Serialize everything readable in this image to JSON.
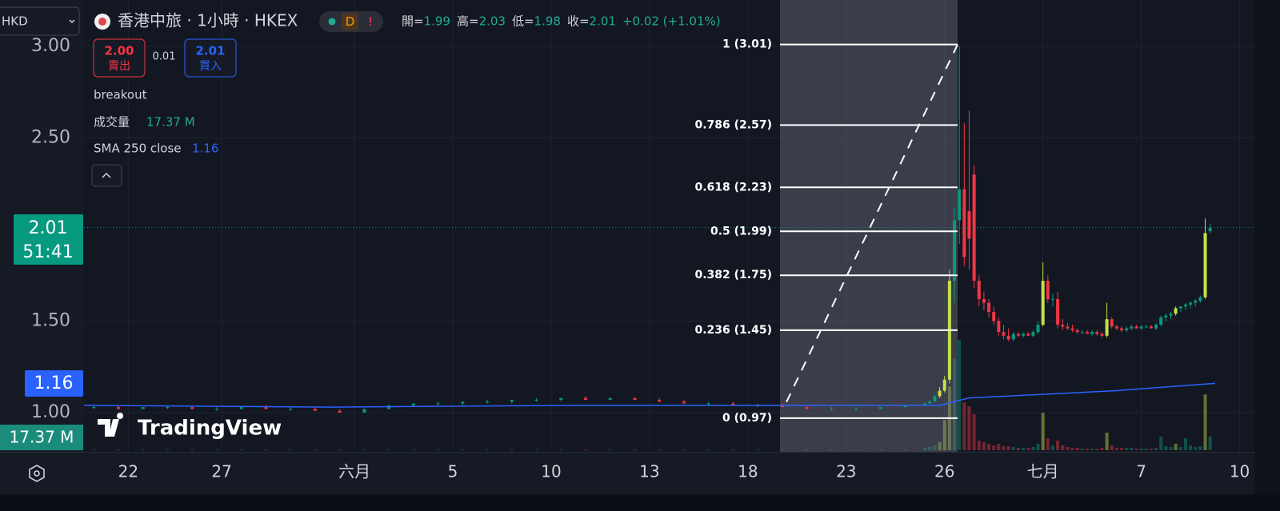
{
  "ui": {
    "currency": "HKD",
    "symbol": "香港中旅 · 1小時 · HKEX",
    "badge_d": "D",
    "badge_alert": "!",
    "ohlc_labels": [
      "開=",
      "高=",
      "低=",
      "收="
    ],
    "change": "+0.02 (+1.01%)",
    "sell_price": "2.00",
    "sell_label": "賣出",
    "spread": "0.01",
    "buy_price": "2.01",
    "buy_label": "買入",
    "indicator_breakout": "breakout",
    "volume_name": "成交量",
    "timer": "51:41",
    "logo": "TradingView"
  },
  "chart_data": {
    "type": "candlestick",
    "xlim": [
      0,
      238
    ],
    "ylim": [
      0.786,
      3.253
    ],
    "volume_lim": [
      0,
      560
    ],
    "yticks": [
      {
        "value": 1,
        "label": "1.00"
      },
      {
        "value": 1.5,
        "label": "1.50"
      },
      {
        "value": 2.5,
        "label": "2.50"
      },
      {
        "value": 3,
        "label": "3.00"
      }
    ],
    "xticks": [
      {
        "value": 9,
        "label": "22"
      },
      {
        "value": 28,
        "label": "27"
      },
      {
        "value": 55,
        "label": "六月"
      },
      {
        "value": 75,
        "label": "5"
      },
      {
        "value": 95,
        "label": "10"
      },
      {
        "value": 115,
        "label": "13"
      },
      {
        "value": 135,
        "label": "18"
      },
      {
        "value": 155,
        "label": "23"
      },
      {
        "value": 175,
        "label": "26"
      },
      {
        "value": 195,
        "label": "七月"
      },
      {
        "value": 215,
        "label": "7"
      },
      {
        "value": 235,
        "label": "10"
      }
    ],
    "grid": true,
    "volume_label": "17.37 M",
    "candles": [
      {
        "x": 2,
        "o": 1.03,
        "h": 1.04,
        "l": 1.02,
        "c": 1.03,
        "v": 1,
        "color": "#089981"
      },
      {
        "x": 7,
        "o": 1.03,
        "h": 1.04,
        "l": 1.02,
        "c": 1.02,
        "v": 1,
        "color": "#f23645"
      },
      {
        "x": 12,
        "o": 1.02,
        "h": 1.03,
        "l": 1.02,
        "c": 1.03,
        "v": 1,
        "color": "#089981"
      },
      {
        "x": 17,
        "o": 1.03,
        "h": 1.04,
        "l": 1.02,
        "c": 1.03,
        "v": 1,
        "color": "#089981"
      },
      {
        "x": 22,
        "o": 1.03,
        "h": 1.03,
        "l": 1.02,
        "c": 1.02,
        "v": 1,
        "color": "#f23645"
      },
      {
        "x": 27,
        "o": 1.02,
        "h": 1.03,
        "l": 1.01,
        "c": 1.02,
        "v": 1,
        "color": "#089981"
      },
      {
        "x": 32,
        "o": 1.02,
        "h": 1.03,
        "l": 1.02,
        "c": 1.03,
        "v": 1,
        "color": "#089981"
      },
      {
        "x": 37,
        "o": 1.03,
        "h": 1.04,
        "l": 1.02,
        "c": 1.02,
        "v": 1,
        "color": "#f23645"
      },
      {
        "x": 42,
        "o": 1.02,
        "h": 1.03,
        "l": 1.01,
        "c": 1.02,
        "v": 1,
        "color": "#089981"
      },
      {
        "x": 47,
        "o": 1.02,
        "h": 1.03,
        "l": 1.01,
        "c": 1.01,
        "v": 1,
        "color": "#f23645"
      },
      {
        "x": 52,
        "o": 1.01,
        "h": 1.02,
        "l": 1.0,
        "c": 1.0,
        "v": 1,
        "color": "#f23645"
      },
      {
        "x": 57,
        "o": 1.0,
        "h": 1.02,
        "l": 1.0,
        "c": 1.02,
        "v": 1,
        "color": "#089981"
      },
      {
        "x": 62,
        "o": 1.02,
        "h": 1.04,
        "l": 1.02,
        "c": 1.04,
        "v": 1,
        "color": "#089981"
      },
      {
        "x": 67,
        "o": 1.04,
        "h": 1.05,
        "l": 1.03,
        "c": 1.05,
        "v": 1,
        "color": "#089981"
      },
      {
        "x": 72,
        "o": 1.05,
        "h": 1.06,
        "l": 1.04,
        "c": 1.05,
        "v": 1,
        "color": "#089981"
      },
      {
        "x": 77,
        "o": 1.05,
        "h": 1.06,
        "l": 1.04,
        "c": 1.06,
        "v": 1,
        "color": "#089981"
      },
      {
        "x": 82,
        "o": 1.06,
        "h": 1.07,
        "l": 1.05,
        "c": 1.06,
        "v": 1,
        "color": "#089981"
      },
      {
        "x": 87,
        "o": 1.06,
        "h": 1.07,
        "l": 1.05,
        "c": 1.07,
        "v": 1,
        "color": "#089981"
      },
      {
        "x": 92,
        "o": 1.07,
        "h": 1.08,
        "l": 1.06,
        "c": 1.07,
        "v": 1,
        "color": "#089981"
      },
      {
        "x": 97,
        "o": 1.07,
        "h": 1.08,
        "l": 1.06,
        "c": 1.08,
        "v": 1,
        "color": "#089981"
      },
      {
        "x": 102,
        "o": 1.08,
        "h": 1.09,
        "l": 1.07,
        "c": 1.07,
        "v": 1,
        "color": "#f23645"
      },
      {
        "x": 107,
        "o": 1.07,
        "h": 1.08,
        "l": 1.07,
        "c": 1.08,
        "v": 1,
        "color": "#089981"
      },
      {
        "x": 112,
        "o": 1.08,
        "h": 1.08,
        "l": 1.07,
        "c": 1.07,
        "v": 1,
        "color": "#f23645"
      },
      {
        "x": 117,
        "o": 1.07,
        "h": 1.08,
        "l": 1.06,
        "c": 1.06,
        "v": 1,
        "color": "#f23645"
      },
      {
        "x": 122,
        "o": 1.06,
        "h": 1.07,
        "l": 1.05,
        "c": 1.05,
        "v": 1,
        "color": "#f23645"
      },
      {
        "x": 127,
        "o": 1.05,
        "h": 1.06,
        "l": 1.04,
        "c": 1.05,
        "v": 1,
        "color": "#089981"
      },
      {
        "x": 132,
        "o": 1.05,
        "h": 1.06,
        "l": 1.04,
        "c": 1.04,
        "v": 1,
        "color": "#f23645"
      },
      {
        "x": 137,
        "o": 1.04,
        "h": 1.05,
        "l": 1.03,
        "c": 1.04,
        "v": 1,
        "color": "#089981"
      },
      {
        "x": 142,
        "o": 1.04,
        "h": 1.05,
        "l": 1.03,
        "c": 1.03,
        "v": 1,
        "color": "#f23645"
      },
      {
        "x": 147,
        "o": 1.03,
        "h": 1.04,
        "l": 1.02,
        "c": 1.02,
        "v": 1,
        "color": "#f23645"
      },
      {
        "x": 152,
        "o": 1.02,
        "h": 1.03,
        "l": 1.01,
        "c": 1.02,
        "v": 1,
        "color": "#089981"
      },
      {
        "x": 157,
        "o": 1.02,
        "h": 1.03,
        "l": 1.01,
        "c": 1.02,
        "v": 1,
        "color": "#089981"
      },
      {
        "x": 162,
        "o": 1.02,
        "h": 1.03,
        "l": 1.02,
        "c": 1.03,
        "v": 1,
        "color": "#089981"
      },
      {
        "x": 167,
        "o": 1.03,
        "h": 1.04,
        "l": 1.03,
        "c": 1.04,
        "v": 1,
        "color": "#089981"
      },
      {
        "x": 171,
        "o": 1.04,
        "h": 1.06,
        "l": 1.04,
        "c": 1.05,
        "v": 3,
        "color": "#089981"
      },
      {
        "x": 172,
        "o": 1.05,
        "h": 1.07,
        "l": 1.05,
        "c": 1.06,
        "v": 4,
        "color": "#089981"
      },
      {
        "x": 173,
        "o": 1.06,
        "h": 1.1,
        "l": 1.06,
        "c": 1.09,
        "v": 6,
        "color": "#089981"
      },
      {
        "x": 174,
        "o": 1.09,
        "h": 1.14,
        "l": 1.08,
        "c": 1.12,
        "v": 10,
        "color": "#c5e04a"
      },
      {
        "x": 175,
        "o": 1.12,
        "h": 1.2,
        "l": 1.11,
        "c": 1.18,
        "v": 38,
        "color": "#c5e04a"
      },
      {
        "x": 176,
        "o": 1.18,
        "h": 1.78,
        "l": 1.16,
        "c": 1.72,
        "v": 80,
        "color": "#c5e04a"
      },
      {
        "x": 177,
        "o": 1.72,
        "h": 2.12,
        "l": 1.6,
        "c": 2.05,
        "v": 115,
        "color": "#089981"
      },
      {
        "x": 178,
        "o": 2.05,
        "h": 3.0,
        "l": 1.92,
        "c": 2.22,
        "v": 138,
        "color": "#089981"
      },
      {
        "x": 179,
        "o": 2.22,
        "h": 2.58,
        "l": 1.8,
        "c": 1.85,
        "v": 60,
        "color": "#f23645"
      },
      {
        "x": 180,
        "o": 2.1,
        "h": 2.65,
        "l": 1.78,
        "c": 1.95,
        "v": 55,
        "color": "#f23645"
      },
      {
        "x": 181,
        "o": 2.3,
        "h": 2.35,
        "l": 1.68,
        "c": 1.72,
        "v": 45,
        "color": "#f23645"
      },
      {
        "x": 182,
        "o": 1.72,
        "h": 1.75,
        "l": 1.58,
        "c": 1.62,
        "v": 12,
        "color": "#f23645"
      },
      {
        "x": 183,
        "o": 1.62,
        "h": 1.66,
        "l": 1.56,
        "c": 1.6,
        "v": 10,
        "color": "#f23645"
      },
      {
        "x": 184,
        "o": 1.6,
        "h": 1.62,
        "l": 1.52,
        "c": 1.55,
        "v": 8,
        "color": "#f23645"
      },
      {
        "x": 185,
        "o": 1.55,
        "h": 1.58,
        "l": 1.48,
        "c": 1.5,
        "v": 6,
        "color": "#f23645"
      },
      {
        "x": 186,
        "o": 1.5,
        "h": 1.52,
        "l": 1.42,
        "c": 1.44,
        "v": 8,
        "color": "#f23645"
      },
      {
        "x": 187,
        "o": 1.44,
        "h": 1.48,
        "l": 1.4,
        "c": 1.42,
        "v": 5,
        "color": "#f23645"
      },
      {
        "x": 188,
        "o": 1.42,
        "h": 1.46,
        "l": 1.39,
        "c": 1.4,
        "v": 5,
        "color": "#f23645"
      },
      {
        "x": 189,
        "o": 1.4,
        "h": 1.44,
        "l": 1.39,
        "c": 1.43,
        "v": 4,
        "color": "#089981"
      },
      {
        "x": 190,
        "o": 1.43,
        "h": 1.44,
        "l": 1.41,
        "c": 1.42,
        "v": 3,
        "color": "#f23645"
      },
      {
        "x": 191,
        "o": 1.42,
        "h": 1.44,
        "l": 1.41,
        "c": 1.43,
        "v": 3,
        "color": "#089981"
      },
      {
        "x": 192,
        "o": 1.43,
        "h": 1.44,
        "l": 1.42,
        "c": 1.42,
        "v": 3,
        "color": "#f23645"
      },
      {
        "x": 193,
        "o": 1.42,
        "h": 1.45,
        "l": 1.41,
        "c": 1.44,
        "v": 4,
        "color": "#089981"
      },
      {
        "x": 194,
        "o": 1.44,
        "h": 1.5,
        "l": 1.43,
        "c": 1.48,
        "v": 8,
        "color": "#089981"
      },
      {
        "x": 195,
        "o": 1.48,
        "h": 1.82,
        "l": 1.47,
        "c": 1.72,
        "v": 47,
        "color": "#c5e04a"
      },
      {
        "x": 196,
        "o": 1.72,
        "h": 1.75,
        "l": 1.6,
        "c": 1.62,
        "v": 15,
        "color": "#f23645"
      },
      {
        "x": 197,
        "o": 1.62,
        "h": 1.65,
        "l": 1.58,
        "c": 1.62,
        "v": 6,
        "color": "#089981"
      },
      {
        "x": 198,
        "o": 1.62,
        "h": 1.66,
        "l": 1.46,
        "c": 1.48,
        "v": 12,
        "color": "#f23645"
      },
      {
        "x": 199,
        "o": 1.48,
        "h": 1.51,
        "l": 1.45,
        "c": 1.47,
        "v": 6,
        "color": "#f23645"
      },
      {
        "x": 200,
        "o": 1.47,
        "h": 1.49,
        "l": 1.45,
        "c": 1.46,
        "v": 4,
        "color": "#f23645"
      },
      {
        "x": 201,
        "o": 1.46,
        "h": 1.48,
        "l": 1.44,
        "c": 1.45,
        "v": 3,
        "color": "#f23645"
      },
      {
        "x": 202,
        "o": 1.45,
        "h": 1.46,
        "l": 1.43,
        "c": 1.44,
        "v": 3,
        "color": "#f23645"
      },
      {
        "x": 203,
        "o": 1.44,
        "h": 1.45,
        "l": 1.43,
        "c": 1.44,
        "v": 2,
        "color": "#089981"
      },
      {
        "x": 204,
        "o": 1.44,
        "h": 1.45,
        "l": 1.43,
        "c": 1.43,
        "v": 2,
        "color": "#f23645"
      },
      {
        "x": 205,
        "o": 1.43,
        "h": 1.45,
        "l": 1.42,
        "c": 1.44,
        "v": 2,
        "color": "#089981"
      },
      {
        "x": 206,
        "o": 1.44,
        "h": 1.45,
        "l": 1.42,
        "c": 1.43,
        "v": 2,
        "color": "#f23645"
      },
      {
        "x": 207,
        "o": 1.43,
        "h": 1.44,
        "l": 1.41,
        "c": 1.42,
        "v": 3,
        "color": "#f23645"
      },
      {
        "x": 208,
        "o": 1.42,
        "h": 1.6,
        "l": 1.41,
        "c": 1.51,
        "v": 22,
        "color": "#c5e04a"
      },
      {
        "x": 209,
        "o": 1.51,
        "h": 1.52,
        "l": 1.46,
        "c": 1.47,
        "v": 6,
        "color": "#f23645"
      },
      {
        "x": 210,
        "o": 1.47,
        "h": 1.48,
        "l": 1.45,
        "c": 1.46,
        "v": 3,
        "color": "#f23645"
      },
      {
        "x": 211,
        "o": 1.46,
        "h": 1.47,
        "l": 1.44,
        "c": 1.45,
        "v": 3,
        "color": "#f23645"
      },
      {
        "x": 212,
        "o": 1.45,
        "h": 1.47,
        "l": 1.44,
        "c": 1.46,
        "v": 3,
        "color": "#089981"
      },
      {
        "x": 213,
        "o": 1.46,
        "h": 1.48,
        "l": 1.45,
        "c": 1.47,
        "v": 3,
        "color": "#089981"
      },
      {
        "x": 214,
        "o": 1.47,
        "h": 1.48,
        "l": 1.46,
        "c": 1.46,
        "v": 2,
        "color": "#f23645"
      },
      {
        "x": 215,
        "o": 1.46,
        "h": 1.48,
        "l": 1.45,
        "c": 1.47,
        "v": 2,
        "color": "#089981"
      },
      {
        "x": 216,
        "o": 1.47,
        "h": 1.48,
        "l": 1.46,
        "c": 1.47,
        "v": 2,
        "color": "#089981"
      },
      {
        "x": 217,
        "o": 1.47,
        "h": 1.48,
        "l": 1.46,
        "c": 1.46,
        "v": 2,
        "color": "#f23645"
      },
      {
        "x": 218,
        "o": 1.46,
        "h": 1.49,
        "l": 1.45,
        "c": 1.48,
        "v": 3,
        "color": "#089981"
      },
      {
        "x": 219,
        "o": 1.48,
        "h": 1.53,
        "l": 1.47,
        "c": 1.52,
        "v": 17,
        "color": "#089981"
      },
      {
        "x": 220,
        "o": 1.52,
        "h": 1.54,
        "l": 1.5,
        "c": 1.53,
        "v": 5,
        "color": "#089981"
      },
      {
        "x": 221,
        "o": 1.53,
        "h": 1.55,
        "l": 1.51,
        "c": 1.54,
        "v": 4,
        "color": "#089981"
      },
      {
        "x": 222,
        "o": 1.54,
        "h": 1.58,
        "l": 1.53,
        "c": 1.57,
        "v": 8,
        "color": "#c5e04a"
      },
      {
        "x": 223,
        "o": 1.57,
        "h": 1.58,
        "l": 1.55,
        "c": 1.58,
        "v": 4,
        "color": "#089981"
      },
      {
        "x": 224,
        "o": 1.58,
        "h": 1.6,
        "l": 1.56,
        "c": 1.59,
        "v": 15,
        "color": "#089981"
      },
      {
        "x": 225,
        "o": 1.59,
        "h": 1.61,
        "l": 1.57,
        "c": 1.6,
        "v": 6,
        "color": "#089981"
      },
      {
        "x": 226,
        "o": 1.6,
        "h": 1.62,
        "l": 1.58,
        "c": 1.61,
        "v": 4,
        "color": "#089981"
      },
      {
        "x": 227,
        "o": 1.61,
        "h": 1.64,
        "l": 1.6,
        "c": 1.63,
        "v": 5,
        "color": "#089981"
      },
      {
        "x": 228,
        "o": 1.63,
        "h": 2.06,
        "l": 1.62,
        "c": 1.98,
        "v": 70,
        "color": "#c5e04a"
      },
      {
        "x": 229,
        "o": 1.99,
        "h": 2.03,
        "l": 1.98,
        "c": 2.01,
        "v": 17.37,
        "color": "#089981"
      }
    ],
    "sma": {
      "name": "SMA 250 close",
      "color": "#2962ff",
      "x": [
        0,
        50,
        100,
        150,
        174,
        180,
        195,
        210,
        230
      ],
      "values": [
        1.04,
        1.03,
        1.04,
        1.04,
        1.04,
        1.08,
        1.1,
        1.12,
        1.16
      ]
    },
    "fib": {
      "color": "#ffffff",
      "levels": [
        {
          "label": "1 (3.01)",
          "value": 3.01
        },
        {
          "label": "0.786 (2.57)",
          "value": 2.57
        },
        {
          "label": "0.618 (2.23)",
          "value": 2.23
        },
        {
          "label": "0.5 (1.99)",
          "value": 1.99
        },
        {
          "label": "0.382 (1.75)",
          "value": 1.75
        },
        {
          "label": "0.236 (1.45)",
          "value": 1.45
        },
        {
          "label": "0 (0.97)",
          "value": 0.97
        }
      ]
    }
  }
}
